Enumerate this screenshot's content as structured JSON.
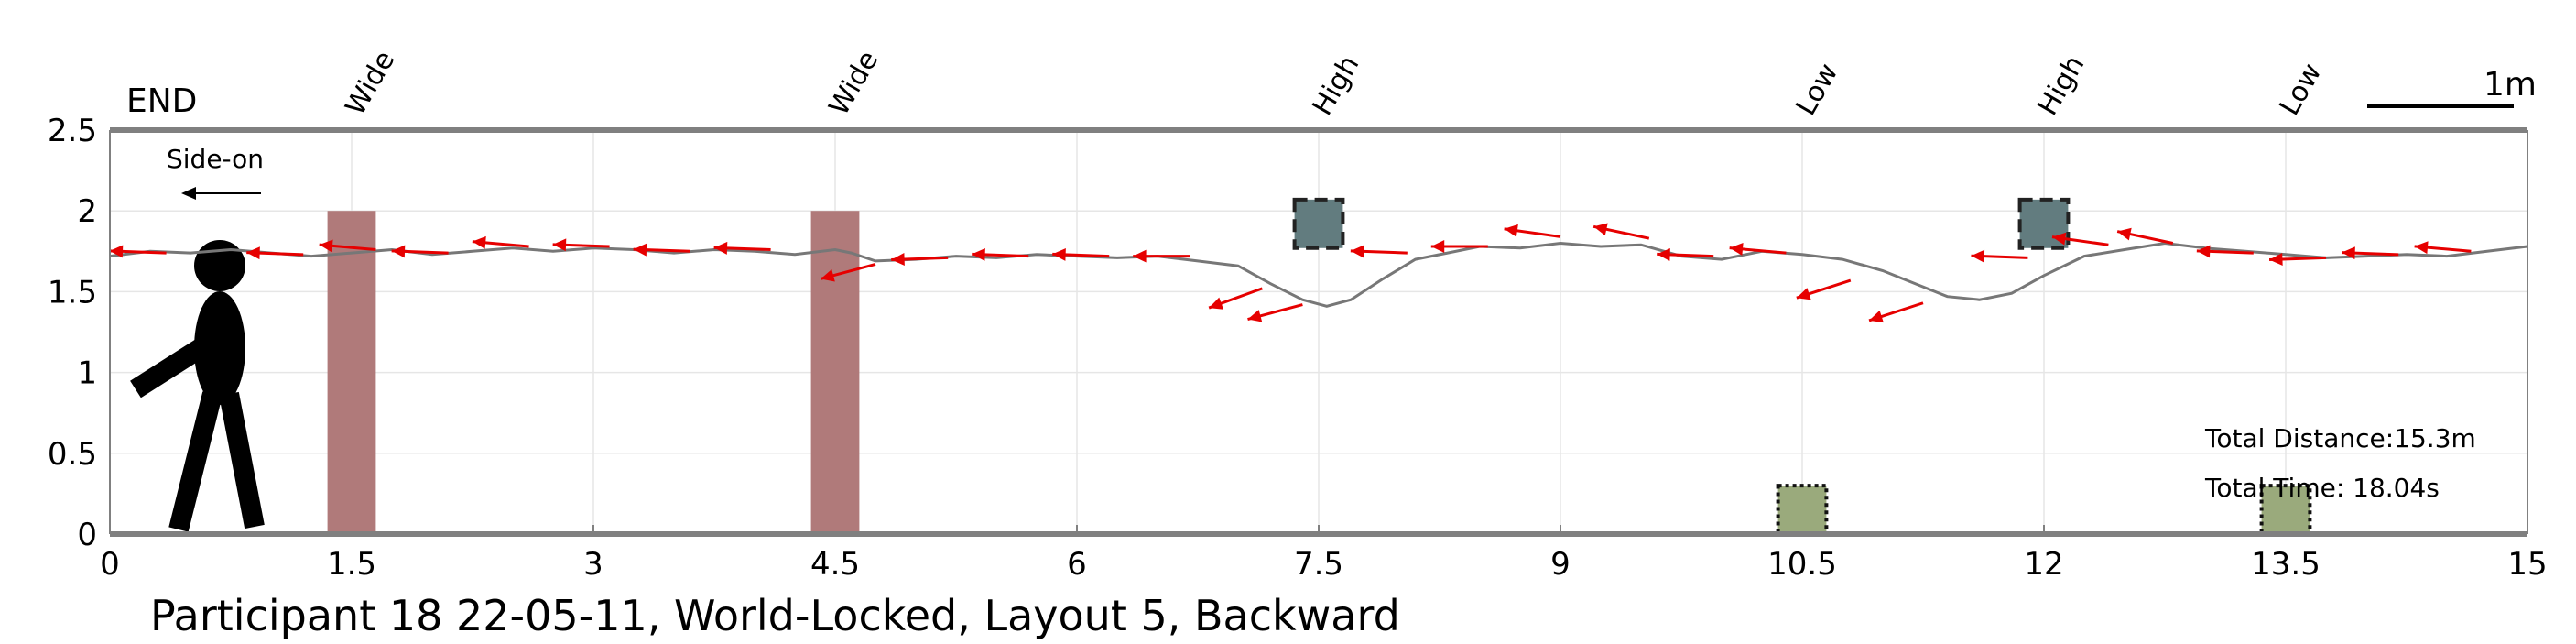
{
  "chart_data": {
    "type": "line",
    "title": "Participant 18 22-05-11, World-Locked, Layout 5, Backward",
    "xlabel": "",
    "ylabel": "",
    "xlim": [
      0,
      15
    ],
    "ylim": [
      0,
      2.5
    ],
    "xticks": [
      "0",
      "1.5",
      "3",
      "4.5",
      "6",
      "7.5",
      "9",
      "10.5",
      "12",
      "13.5",
      "15"
    ],
    "yticks": [
      "0",
      "0.5",
      "1",
      "1.5",
      "2",
      "2.5"
    ],
    "grid": true,
    "end_label": "END",
    "direction_label": "Side-on",
    "scale_label": "1m",
    "total_distance": "Total Distance:15.3m",
    "total_time": "Total Time: 18.04s",
    "colors": {
      "path": "#777777",
      "arrows": "#e60000",
      "wide_obstacle": "#b07a7a",
      "high_obstacle": "#627c7f",
      "low_obstacle": "#9aaa7c",
      "axis": "#808080",
      "grid": "#e6e6e6"
    },
    "obstacles": [
      {
        "label": "Wide",
        "type": "wide",
        "x": 1.5,
        "x0": 1.35,
        "x1": 1.65,
        "y0": 0,
        "y1": 2.0
      },
      {
        "label": "Wide",
        "type": "wide",
        "x": 4.5,
        "x0": 4.35,
        "x1": 4.65,
        "y0": 0,
        "y1": 2.0
      },
      {
        "label": "High",
        "type": "high",
        "x": 7.5,
        "x0": 7.35,
        "x1": 7.65,
        "y0": 1.77,
        "y1": 2.07
      },
      {
        "label": "Low",
        "type": "low",
        "x": 10.5,
        "x0": 10.35,
        "x1": 10.65,
        "y0": 0,
        "y1": 0.3
      },
      {
        "label": "High",
        "type": "high",
        "x": 12.0,
        "x0": 11.85,
        "x1": 12.15,
        "y0": 1.77,
        "y1": 2.07
      },
      {
        "label": "Low",
        "type": "low",
        "x": 13.5,
        "x0": 13.35,
        "x1": 13.65,
        "y0": 0,
        "y1": 0.3
      }
    ],
    "path": {
      "x": [
        0.0,
        0.25,
        0.5,
        0.75,
        1.0,
        1.25,
        1.5,
        1.75,
        2.0,
        2.25,
        2.5,
        2.75,
        3.0,
        3.25,
        3.5,
        3.75,
        4.0,
        4.25,
        4.5,
        4.6,
        4.75,
        5.0,
        5.25,
        5.5,
        5.75,
        6.0,
        6.25,
        6.5,
        6.75,
        7.0,
        7.2,
        7.4,
        7.55,
        7.7,
        7.9,
        8.1,
        8.3,
        8.5,
        8.75,
        9.0,
        9.25,
        9.5,
        9.75,
        10.0,
        10.25,
        10.5,
        10.75,
        11.0,
        11.2,
        11.4,
        11.6,
        11.8,
        12.0,
        12.25,
        12.5,
        12.75,
        13.0,
        13.25,
        13.5,
        13.75,
        14.0,
        14.25,
        14.5,
        14.75,
        15.0
      ],
      "y": [
        1.72,
        1.75,
        1.74,
        1.76,
        1.74,
        1.72,
        1.74,
        1.76,
        1.73,
        1.75,
        1.77,
        1.75,
        1.77,
        1.76,
        1.74,
        1.76,
        1.75,
        1.73,
        1.76,
        1.74,
        1.69,
        1.7,
        1.72,
        1.71,
        1.73,
        1.72,
        1.71,
        1.72,
        1.69,
        1.66,
        1.55,
        1.45,
        1.41,
        1.45,
        1.58,
        1.7,
        1.74,
        1.78,
        1.77,
        1.8,
        1.78,
        1.79,
        1.72,
        1.7,
        1.75,
        1.73,
        1.7,
        1.63,
        1.55,
        1.47,
        1.45,
        1.49,
        1.6,
        1.72,
        1.76,
        1.8,
        1.77,
        1.75,
        1.73,
        1.71,
        1.72,
        1.73,
        1.72,
        1.75,
        1.78
      ]
    },
    "arrows": [
      {
        "x": 0.35,
        "y": 1.74,
        "angle": 178
      },
      {
        "x": 1.2,
        "y": 1.73,
        "angle": 178
      },
      {
        "x": 1.65,
        "y": 1.76,
        "angle": 175
      },
      {
        "x": 2.1,
        "y": 1.74,
        "angle": 178
      },
      {
        "x": 2.6,
        "y": 1.78,
        "angle": 175
      },
      {
        "x": 3.1,
        "y": 1.78,
        "angle": 178
      },
      {
        "x": 3.6,
        "y": 1.75,
        "angle": 178
      },
      {
        "x": 4.1,
        "y": 1.76,
        "angle": 178
      },
      {
        "x": 4.75,
        "y": 1.67,
        "angle": 195
      },
      {
        "x": 5.2,
        "y": 1.71,
        "angle": 182
      },
      {
        "x": 5.7,
        "y": 1.72,
        "angle": 178
      },
      {
        "x": 6.2,
        "y": 1.72,
        "angle": 178
      },
      {
        "x": 6.7,
        "y": 1.72,
        "angle": 180
      },
      {
        "x": 7.15,
        "y": 1.52,
        "angle": 200
      },
      {
        "x": 7.4,
        "y": 1.42,
        "angle": 195
      },
      {
        "x": 8.05,
        "y": 1.74,
        "angle": 178
      },
      {
        "x": 8.55,
        "y": 1.78,
        "angle": 180
      },
      {
        "x": 9.0,
        "y": 1.84,
        "angle": 172
      },
      {
        "x": 9.55,
        "y": 1.83,
        "angle": 168
      },
      {
        "x": 9.95,
        "y": 1.72,
        "angle": 178
      },
      {
        "x": 10.4,
        "y": 1.74,
        "angle": 175
      },
      {
        "x": 10.8,
        "y": 1.57,
        "angle": 198
      },
      {
        "x": 11.25,
        "y": 1.43,
        "angle": 198
      },
      {
        "x": 11.9,
        "y": 1.71,
        "angle": 178
      },
      {
        "x": 12.4,
        "y": 1.79,
        "angle": 172
      },
      {
        "x": 12.8,
        "y": 1.8,
        "angle": 168
      },
      {
        "x": 13.3,
        "y": 1.74,
        "angle": 178
      },
      {
        "x": 13.75,
        "y": 1.71,
        "angle": 182
      },
      {
        "x": 14.2,
        "y": 1.73,
        "angle": 178
      },
      {
        "x": 14.65,
        "y": 1.75,
        "angle": 175
      }
    ]
  }
}
